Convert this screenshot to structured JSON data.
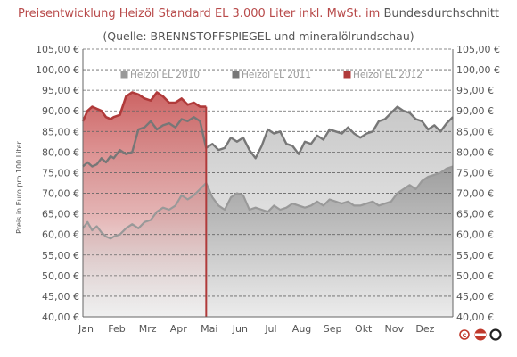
{
  "header": {
    "title_part1": "Preisentwicklung Heizöl Standard EL 3.000 Liter inkl. MwSt. im",
    "title_part2": "Bundesdurchschnitt",
    "subtitle": "(Quelle: BRENNSTOFFSPIEGEL  und mineralölrundschau)"
  },
  "logo": {
    "icon": "copyright-ezo-logo-icon",
    "text": "EZO"
  },
  "chart_data": {
    "type": "area",
    "ylabel": "Preis in Euro pro 100 Liter",
    "xlabel": "",
    "ylim": [
      40,
      105
    ],
    "y_ticks": [
      "40,00 €",
      "45,00 €",
      "50,00 €",
      "55,00 €",
      "60,00 €",
      "65,00 €",
      "70,00 €",
      "75,00 €",
      "80,00 €",
      "85,00 €",
      "90,00 €",
      "95,00 €",
      "100,00 €",
      "105,00 €"
    ],
    "categories": [
      "Jan",
      "Feb",
      "Mrz",
      "Apr",
      "Mai",
      "Jun",
      "Jul",
      "Aug",
      "Sep",
      "Okt",
      "Nov",
      "Dez"
    ],
    "grid": true,
    "legend_position": "top",
    "series": [
      {
        "name": "Heizöl EL 2010",
        "color": "#999999",
        "x": [
          0.0,
          0.15,
          0.3,
          0.45,
          0.6,
          0.75,
          0.9,
          1.0,
          1.2,
          1.4,
          1.6,
          1.8,
          2.0,
          2.2,
          2.4,
          2.6,
          2.8,
          3.0,
          3.2,
          3.4,
          3.6,
          3.8,
          4.0,
          4.2,
          4.4,
          4.6,
          4.8,
          5.0,
          5.2,
          5.4,
          5.6,
          5.8,
          6.0,
          6.2,
          6.4,
          6.6,
          6.8,
          7.0,
          7.2,
          7.4,
          7.6,
          7.8,
          8.0,
          8.2,
          8.4,
          8.6,
          8.8,
          9.0,
          9.2,
          9.4,
          9.6,
          9.8,
          10.0,
          10.2,
          10.4,
          10.6,
          10.8,
          11.0,
          11.2,
          11.4,
          11.6,
          11.8,
          12.0
        ],
        "values": [
          61.5,
          63.0,
          61.0,
          62.0,
          60.5,
          59.5,
          59.0,
          59.5,
          60.0,
          61.5,
          62.5,
          61.5,
          63.0,
          63.5,
          65.5,
          66.5,
          66.0,
          67.0,
          69.5,
          68.5,
          69.5,
          71.0,
          72.5,
          69.0,
          67.0,
          66.0,
          69.0,
          70.0,
          69.5,
          66.0,
          66.5,
          66.0,
          65.5,
          67.0,
          66.0,
          66.5,
          67.5,
          67.0,
          66.5,
          67.0,
          68.0,
          67.0,
          68.5,
          68.0,
          67.5,
          68.0,
          67.0,
          67.0,
          67.5,
          68.0,
          67.0,
          67.5,
          68.0,
          70.0,
          71.0,
          72.0,
          71.0,
          73.0,
          74.0,
          74.5,
          75.0,
          76.0,
          76.5
        ]
      },
      {
        "name": "Heizöl EL 2011",
        "color": "#777777",
        "x": [
          0.0,
          0.15,
          0.3,
          0.45,
          0.6,
          0.75,
          0.9,
          1.0,
          1.2,
          1.4,
          1.6,
          1.8,
          2.0,
          2.2,
          2.4,
          2.6,
          2.8,
          3.0,
          3.2,
          3.4,
          3.6,
          3.8,
          4.0,
          4.2,
          4.4,
          4.6,
          4.8,
          5.0,
          5.2,
          5.4,
          5.6,
          5.8,
          6.0,
          6.2,
          6.4,
          6.6,
          6.8,
          7.0,
          7.2,
          7.4,
          7.6,
          7.8,
          8.0,
          8.2,
          8.4,
          8.6,
          8.8,
          9.0,
          9.2,
          9.4,
          9.6,
          9.8,
          10.0,
          10.2,
          10.4,
          10.6,
          10.8,
          11.0,
          11.2,
          11.4,
          11.6,
          11.8,
          12.0
        ],
        "values": [
          76.5,
          77.5,
          76.5,
          77.0,
          78.5,
          77.5,
          79.0,
          78.5,
          80.5,
          79.5,
          80.0,
          85.5,
          86.0,
          87.5,
          85.5,
          86.5,
          87.0,
          86.0,
          88.0,
          87.5,
          88.5,
          87.5,
          81.0,
          82.0,
          80.5,
          81.0,
          83.5,
          82.5,
          83.5,
          80.5,
          78.5,
          81.5,
          85.5,
          84.5,
          85.0,
          82.0,
          81.5,
          79.5,
          82.5,
          82.0,
          84.0,
          83.0,
          85.5,
          85.0,
          84.5,
          86.0,
          84.5,
          83.5,
          84.5,
          85.0,
          87.5,
          88.0,
          89.5,
          91.0,
          90.0,
          89.5,
          88.0,
          87.5,
          85.5,
          86.5,
          85.0,
          87.0,
          88.5
        ]
      },
      {
        "name": "Heizöl EL 2012",
        "color": "#b03a3a",
        "x": [
          0.0,
          0.15,
          0.3,
          0.45,
          0.6,
          0.75,
          0.9,
          1.0,
          1.2,
          1.4,
          1.6,
          1.8,
          2.0,
          2.2,
          2.4,
          2.6,
          2.8,
          3.0,
          3.2,
          3.4,
          3.6,
          3.8,
          4.0
        ],
        "values": [
          87.5,
          90.0,
          91.0,
          90.5,
          90.0,
          88.5,
          88.0,
          88.5,
          89.0,
          93.5,
          94.5,
          94.0,
          93.0,
          92.5,
          94.5,
          93.5,
          92.0,
          92.0,
          93.0,
          91.5,
          92.0,
          91.0,
          91.0
        ]
      }
    ]
  }
}
